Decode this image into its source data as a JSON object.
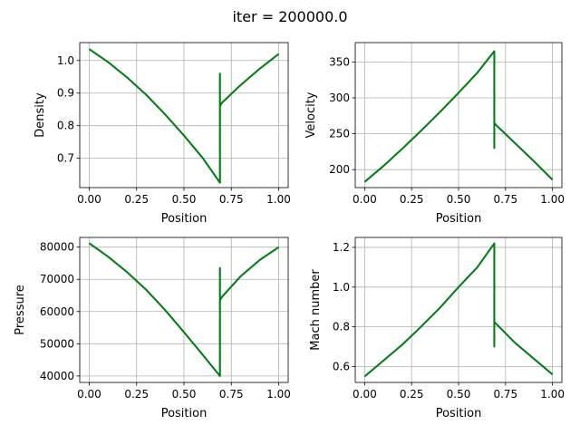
{
  "figure": {
    "suptitle": "iter = 200000.0"
  },
  "colors": {
    "line_outer": "#1f77b4",
    "line_inner": "#008000",
    "grid": "#b0b0b0",
    "frame": "#000000"
  },
  "chart_data": [
    {
      "type": "line",
      "ylabel": "Density",
      "xlabel": "Position",
      "xlim": [
        -0.05,
        1.05
      ],
      "ylim": [
        0.61,
        1.055
      ],
      "xticks": [
        0.0,
        0.25,
        0.5,
        0.75,
        1.0
      ],
      "xtick_labels": [
        "0.00",
        "0.25",
        "0.50",
        "0.75",
        "1.00"
      ],
      "yticks": [
        0.7,
        0.8,
        0.9,
        1.0
      ],
      "ytick_labels": [
        "0.7",
        "0.8",
        "0.9",
        "1.0"
      ],
      "grid": true,
      "series": [
        {
          "x": [
            0.0,
            0.1,
            0.2,
            0.3,
            0.4,
            0.5,
            0.6,
            0.69,
            0.69,
            0.69,
            0.7,
            0.8,
            0.9,
            1.0
          ],
          "y": [
            1.035,
            0.995,
            0.948,
            0.895,
            0.835,
            0.77,
            0.7,
            0.625,
            0.96,
            0.86,
            0.87,
            0.925,
            0.975,
            1.02
          ]
        }
      ]
    },
    {
      "type": "line",
      "ylabel": "Velocity",
      "xlabel": "Position",
      "xlim": [
        -0.05,
        1.05
      ],
      "ylim": [
        175,
        377
      ],
      "xticks": [
        0.0,
        0.25,
        0.5,
        0.75,
        1.0
      ],
      "xtick_labels": [
        "0.00",
        "0.25",
        "0.50",
        "0.75",
        "1.00"
      ],
      "yticks": [
        200,
        250,
        300,
        350
      ],
      "ytick_labels": [
        "200",
        "250",
        "300",
        "350"
      ],
      "grid": true,
      "series": [
        {
          "x": [
            0.0,
            0.1,
            0.2,
            0.3,
            0.4,
            0.5,
            0.6,
            0.69,
            0.69,
            0.69,
            0.7,
            0.8,
            0.9,
            1.0
          ],
          "y": [
            183,
            205,
            229,
            254,
            280,
            307,
            335,
            365,
            230,
            265,
            262,
            237,
            212,
            186
          ]
        }
      ]
    },
    {
      "type": "line",
      "ylabel": "Pressure",
      "xlabel": "Position",
      "xlim": [
        -0.05,
        1.05
      ],
      "ylim": [
        38000,
        83000
      ],
      "xticks": [
        0.0,
        0.25,
        0.5,
        0.75,
        1.0
      ],
      "xtick_labels": [
        "0.00",
        "0.25",
        "0.50",
        "0.75",
        "1.00"
      ],
      "yticks": [
        40000,
        50000,
        60000,
        70000,
        80000
      ],
      "ytick_labels": [
        "40000",
        "50000",
        "60000",
        "70000",
        "80000"
      ],
      "grid": true,
      "series": [
        {
          "x": [
            0.0,
            0.1,
            0.2,
            0.3,
            0.4,
            0.5,
            0.6,
            0.69,
            0.69,
            0.69,
            0.7,
            0.8,
            0.9,
            1.0
          ],
          "y": [
            81200,
            77000,
            72200,
            66800,
            60500,
            53600,
            46500,
            40000,
            73500,
            63500,
            64500,
            71000,
            76000,
            80000
          ]
        }
      ]
    },
    {
      "type": "line",
      "ylabel": "Mach number",
      "xlabel": "Position",
      "xlim": [
        -0.05,
        1.05
      ],
      "ylim": [
        0.52,
        1.25
      ],
      "xticks": [
        0.0,
        0.25,
        0.5,
        0.75,
        1.0
      ],
      "xtick_labels": [
        "0.00",
        "0.25",
        "0.50",
        "0.75",
        "1.00"
      ],
      "yticks": [
        0.6,
        0.8,
        1.0,
        1.2
      ],
      "ytick_labels": [
        "0.6",
        "0.8",
        "1.0",
        "1.2"
      ],
      "grid": true,
      "series": [
        {
          "x": [
            0.0,
            0.1,
            0.2,
            0.3,
            0.4,
            0.5,
            0.6,
            0.69,
            0.69,
            0.69,
            0.7,
            0.8,
            0.9,
            1.0
          ],
          "y": [
            0.55,
            0.63,
            0.71,
            0.8,
            0.895,
            1.0,
            1.1,
            1.22,
            0.7,
            0.825,
            0.815,
            0.72,
            0.64,
            0.56
          ]
        }
      ]
    }
  ]
}
